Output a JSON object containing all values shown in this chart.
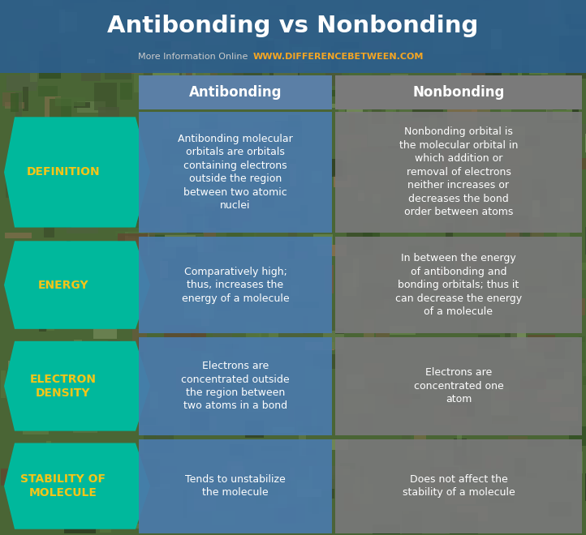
{
  "title": "Antibonding vs Nonbonding",
  "subtitle_gray": "More Information Online",
  "subtitle_orange": "WWW.DIFFERENCEBETWEEN.COM",
  "col1_header": "Antibonding",
  "col2_header": "Nonbonding",
  "rows": [
    {
      "label": "DEFINITION",
      "col1": "Antibonding molecular\norbitals are orbitals\ncontaining electrons\noutside the region\nbetween two atomic\nnuclei",
      "col2": "Nonbonding orbital is\nthe molecular orbital in\nwhich addition or\nremoval of electrons\nneither increases or\ndecreases the bond\norder between atoms"
    },
    {
      "label": "ENERGY",
      "col1": "Comparatively high;\nthus, increases the\nenergy of a molecule",
      "col2": "In between the energy\nof antibonding and\nbonding orbitals; thus it\ncan decrease the energy\nof a molecule"
    },
    {
      "label": "ELECTRON\nDENSITY",
      "col1": "Electrons are\nconcentrated outside\nthe region between\ntwo atoms in a bond",
      "col2": "Electrons are\nconcentrated one\natom"
    },
    {
      "label": "STABILITY OF\nMOLECULE",
      "col1": "Tends to unstabilize\nthe molecule",
      "col2": "Does not affect the\nstability of a molecule"
    }
  ],
  "title_bg_color": "#2d5f8c",
  "title_text_color": "#ffffff",
  "header_col1_color": "#5b7fa6",
  "header_col2_color": "#7a7a7a",
  "row_label_color": "#00b89c",
  "row_label_text_color": "#f5c518",
  "col1_cell_color": "#4a7aaa",
  "col2_cell_color": "#787878",
  "cell_text_color": "#ffffff",
  "subtitle_gray_color": "#cccccc",
  "subtitle_orange_color": "#f5a623",
  "bg_colors": [
    "#4a6b3a",
    "#5a7a48",
    "#3d5530",
    "#6b8050"
  ],
  "fig_width": 7.22,
  "fig_height": 6.6,
  "dpi": 100
}
